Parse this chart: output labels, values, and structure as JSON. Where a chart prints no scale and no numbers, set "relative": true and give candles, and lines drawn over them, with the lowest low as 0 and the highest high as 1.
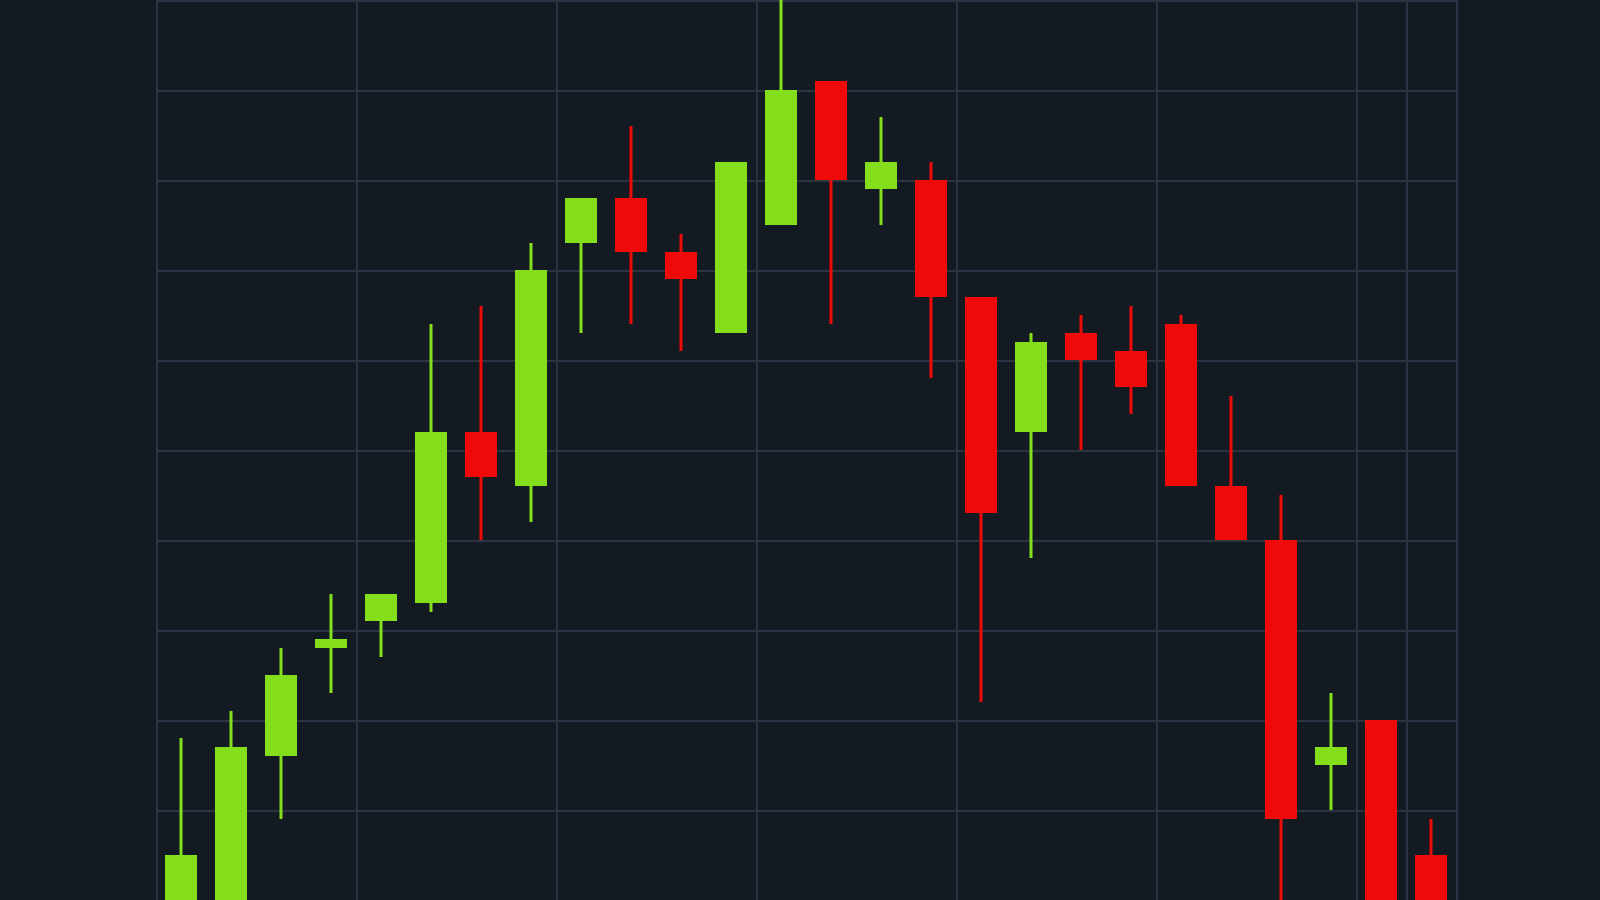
{
  "chart_data": {
    "type": "candlestick",
    "relative": true,
    "grid": true,
    "categories": [
      null,
      null,
      null,
      null,
      null,
      null,
      null,
      null,
      null,
      null,
      null,
      null,
      null,
      null,
      null,
      null,
      null,
      null,
      null,
      null,
      null,
      null,
      null,
      null,
      null,
      null
    ],
    "colors": [
      "#84de1c",
      "#84de1c",
      "#84de1c",
      "#84de1c",
      "#84de1c",
      "#84de1c",
      "#ef0a0a",
      "#84de1c",
      "#84de1c",
      "#ef0a0a",
      "#ef0a0a",
      "#84de1c",
      "#84de1c",
      "#ef0a0a",
      "#84de1c",
      "#ef0a0a",
      "#ef0a0a",
      "#84de1c",
      "#ef0a0a",
      "#ef0a0a",
      "#ef0a0a",
      "#ef0a0a",
      "#ef0a0a",
      "#84de1c",
      "#ef0a0a",
      "#ef0a0a"
    ],
    "ohlc": [
      [
        0,
        0.18,
        0,
        0.05
      ],
      [
        0,
        0.21,
        0,
        0.17
      ],
      [
        0.16,
        0.28,
        0.09,
        0.25
      ],
      [
        0.28,
        0.34,
        0.23,
        0.29
      ],
      [
        0.31,
        0.34,
        0.27,
        0.34
      ],
      [
        0.33,
        0.64,
        0.32,
        0.52
      ],
      [
        0.52,
        0.66,
        0.4,
        0.47
      ],
      [
        0.46,
        0.73,
        0.42,
        0.7
      ],
      [
        0.73,
        0.78,
        0.63,
        0.78
      ],
      [
        0.78,
        0.86,
        0.64,
        0.72
      ],
      [
        0.72,
        0.74,
        0.61,
        0.69
      ],
      [
        0.63,
        0.82,
        0.63,
        0.82
      ],
      [
        0.75,
        1,
        0.75,
        0.9
      ],
      [
        0.91,
        0.91,
        0.64,
        0.8
      ],
      [
        0.79,
        0.87,
        0.75,
        0.82
      ],
      [
        0.8,
        0.82,
        0.58,
        0.67
      ],
      [
        0.67,
        0.67,
        0.22,
        0.43
      ],
      [
        0.52,
        0.63,
        0.38,
        0.62
      ],
      [
        0.63,
        0.65,
        0.5,
        0.6
      ],
      [
        0.61,
        0.66,
        0.54,
        0.57
      ],
      [
        0.64,
        0.65,
        0.46,
        0.46
      ],
      [
        0.46,
        0.56,
        0.4,
        0.4
      ],
      [
        0.4,
        0.45,
        0,
        0.09
      ],
      [
        0.15,
        0.23,
        0.1,
        0.17
      ],
      [
        0.2,
        0.2,
        0,
        0
      ],
      [
        0.05,
        0.09,
        0,
        0
      ]
    ]
  }
}
